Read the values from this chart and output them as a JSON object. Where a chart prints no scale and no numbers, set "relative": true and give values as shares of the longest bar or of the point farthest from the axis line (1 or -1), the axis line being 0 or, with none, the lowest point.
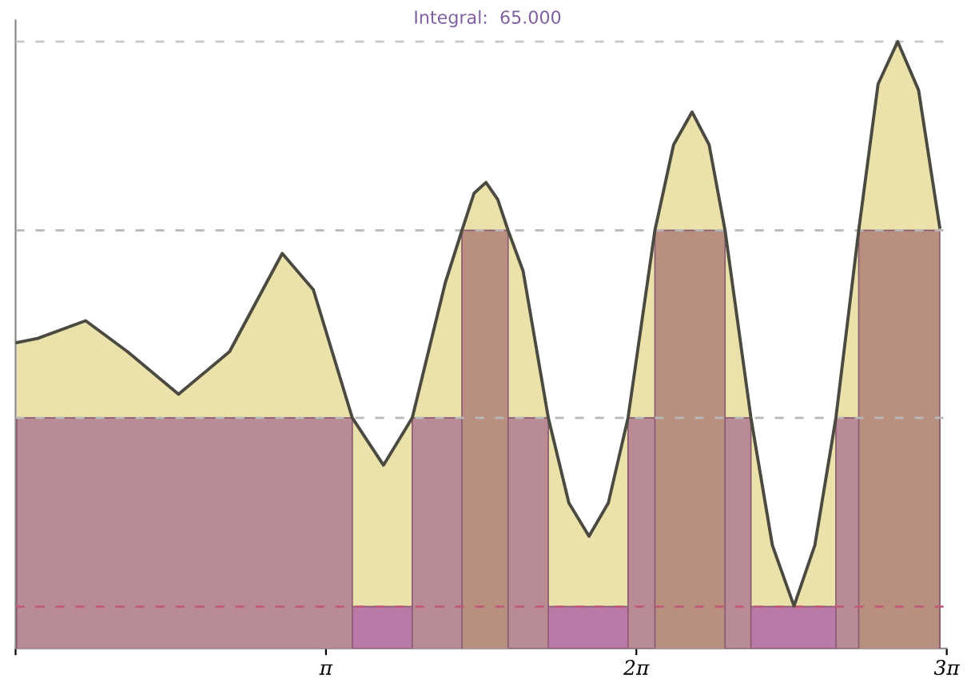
{
  "chart_data": {
    "type": "area",
    "title": "Integral:  65.000",
    "relative": true,
    "xlim": [
      0,
      9.4248
    ],
    "xticks": [
      {
        "value": 0,
        "label": null
      },
      {
        "value": 3.1416,
        "label": "π"
      },
      {
        "value": 6.2832,
        "label": "2π"
      },
      {
        "value": 9.4248,
        "label": "3π"
      }
    ],
    "tick_labels": "x",
    "grid": false,
    "series": [
      {
        "color": "#ebe2ab",
        "x": [
          0.011,
          0.223,
          0.709,
          1.133,
          1.649,
          2.165,
          2.699,
          3.014,
          3.408,
          3.724,
          4.015,
          4.348,
          4.518,
          4.64,
          4.761,
          4.88,
          4.985,
          5.137,
          5.392,
          5.6,
          5.804,
          6.0,
          6.199,
          6.471,
          6.66,
          6.847,
          7.02,
          7.181,
          7.443,
          7.66,
          7.879,
          8.09,
          8.303,
          8.534,
          8.73,
          8.928,
          9.14,
          9.354
        ],
        "values": [
          0.504,
          0.511,
          0.54,
          0.489,
          0.419,
          0.489,
          0.651,
          0.591,
          0.38,
          0.302,
          0.38,
          0.602,
          0.689,
          0.75,
          0.768,
          0.74,
          0.689,
          0.622,
          0.38,
          0.24,
          0.185,
          0.24,
          0.38,
          0.689,
          0.83,
          0.884,
          0.83,
          0.689,
          0.38,
          0.17,
          0.07,
          0.17,
          0.38,
          0.689,
          0.93,
          1.0,
          0.92,
          0.694
        ]
      },
      {
        "color": "#ba7aa8",
        "x": [
          0.011,
          0.011,
          9.354,
          9.354
        ],
        "values": [
          0,
          0.069,
          0.069,
          0
        ]
      },
      {
        "color": "#b98b95",
        "x": [
          0.011,
          0.011,
          3.408,
          3.408,
          4.015,
          4.015,
          5.392,
          5.392,
          6.199,
          6.199,
          7.443,
          7.443,
          8.303,
          8.303,
          9.354,
          9.354
        ],
        "values": [
          0,
          0.38,
          0.38,
          0,
          0,
          0.38,
          0.38,
          0,
          0,
          0.38,
          0.38,
          0,
          0,
          0.38,
          0.38,
          0
        ]
      },
      {
        "color": "#b98f80",
        "x": [
          4.518,
          4.518,
          4.985,
          4.985,
          6.471,
          6.471,
          7.181,
          7.181,
          8.534,
          8.534,
          9.354,
          9.354
        ],
        "values": [
          0,
          0.689,
          0.689,
          0,
          0,
          0.689,
          0.689,
          0,
          0,
          0.689,
          0.689,
          0
        ]
      }
    ],
    "ref_lines": [
      {
        "axis": "y",
        "value": 0.069,
        "color": "#c05a78",
        "line_style": "dashed"
      },
      {
        "axis": "y",
        "value": 0.38,
        "color": "#b8b8b8",
        "line_style": "dashed"
      },
      {
        "axis": "y",
        "value": 0.689,
        "color": "#b8b8b8",
        "line_style": "dashed"
      },
      {
        "axis": "y",
        "value": 1.0,
        "color": "#c8c8c8",
        "line_style": "dashed"
      }
    ]
  }
}
